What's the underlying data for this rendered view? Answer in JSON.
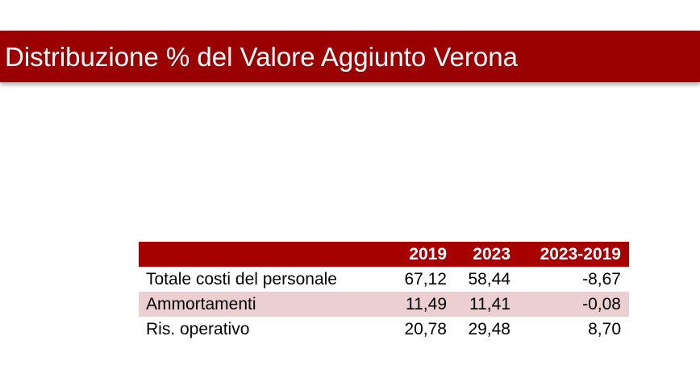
{
  "title": "Distribuzione % del Valore Aggiunto Verona",
  "table": {
    "headers": [
      "",
      "2019",
      "2023",
      "2023-2019"
    ],
    "rows": [
      {
        "label": "Totale costi del personale",
        "v2019": "67,12",
        "v2023": "58,44",
        "diff": "-8,67"
      },
      {
        "label": "Ammortamenti",
        "v2019": "11,49",
        "v2023": "11,41",
        "diff": "-0,08"
      },
      {
        "label": "Ris. operativo",
        "v2019": "20,78",
        "v2023": "29,48",
        "diff": "8,70"
      }
    ]
  },
  "colors": {
    "title_bar": "#9b0000",
    "header_row": "#a60000",
    "shaded_row": "#eccfd1"
  }
}
